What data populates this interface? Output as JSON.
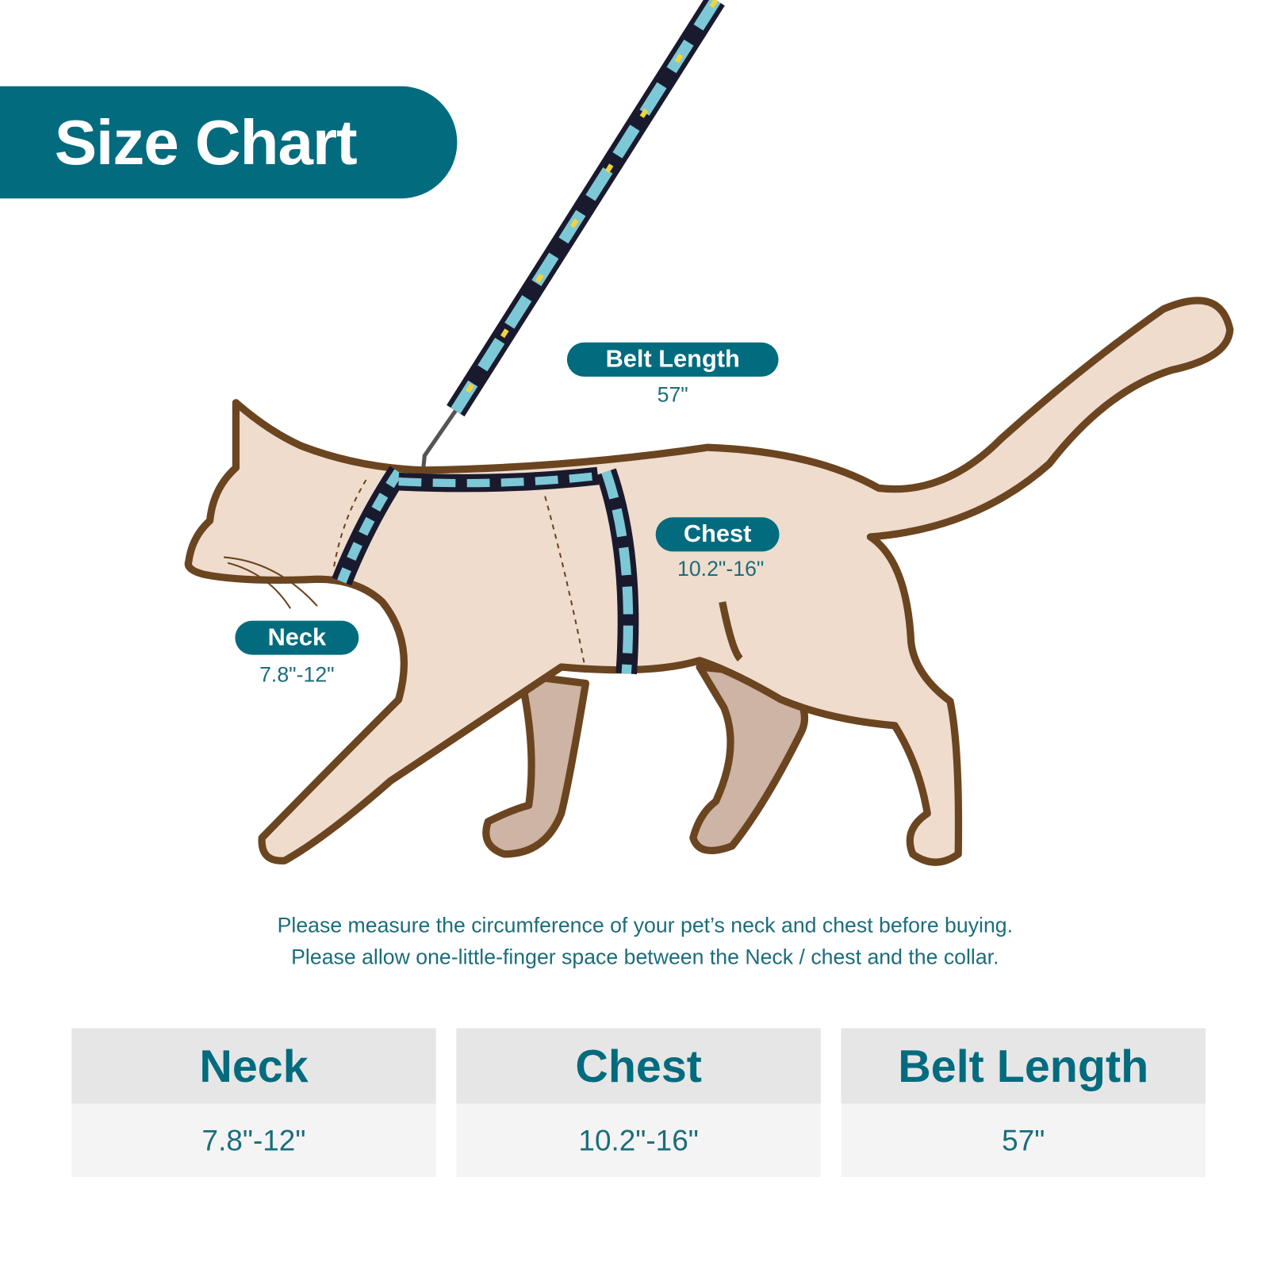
{
  "title": "Size Chart",
  "labels": {
    "belt": {
      "name": "Belt Length",
      "value": "57\""
    },
    "chest": {
      "name": "Chest",
      "value": "10.2\"-16\""
    },
    "neck": {
      "name": "Neck",
      "value": "7.8\"-12\""
    }
  },
  "notes": [
    "Please measure the circumference of your pet’s neck and chest before buying.",
    "Please allow one-little-finger space between the Neck / chest and the collar."
  ],
  "table": [
    {
      "header": "Neck",
      "value": "7.8\"-12\""
    },
    {
      "header": "Chest",
      "value": "10.2\"-16\""
    },
    {
      "header": "Belt Length",
      "value": "57\""
    }
  ],
  "colors": {
    "accent": "#036b7e",
    "cat_fill": "#efdccd",
    "cat_outline": "#6b4520",
    "far_legs": "#cdb4a4"
  }
}
